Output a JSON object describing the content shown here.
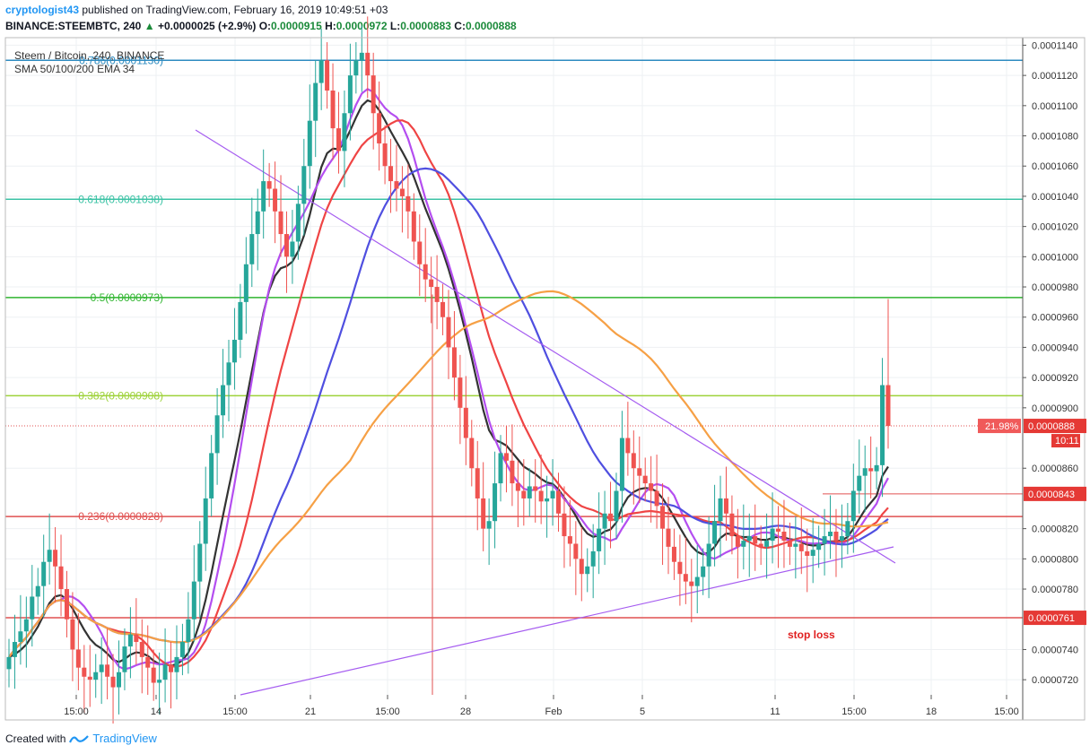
{
  "header": {
    "author": "cryptologist43",
    "published": "published on TradingView.com, February 16, 2019 10:49:51 +03",
    "symbol": "BINANCE:STEEMBTC, 240",
    "change": "+0.0000025 (+2.9%)",
    "o_label": "O:",
    "o_value": "0.0000915",
    "h_label": "H:",
    "h_value": "0.0000972",
    "l_label": "L:",
    "l_value": "0.0000883",
    "c_label": "C:",
    "c_value": "0.0000888"
  },
  "legend": {
    "title": "Steem / Bitcoin, 240, BINANCE",
    "indicators": "SMA 50/100/200 EMA 34"
  },
  "footer": {
    "created_with": "Created with",
    "brand": "TradingView"
  },
  "colors": {
    "up": "#26a69a",
    "down": "#ef5350",
    "ema34": "#333333",
    "sma50": "#b44ef0",
    "sma100": "#ef4444",
    "sma200": "#4f4fe0",
    "orange": "#f6a045",
    "trend": "#a55cf0"
  },
  "chart_data": {
    "type": "candlestick",
    "y_range": [
      7.1e-05,
      0.0001145
    ],
    "y_ticks": [
      "0.0001140",
      "0.0001120",
      "0.0001100",
      "0.0001080",
      "0.0001060",
      "0.0001040",
      "0.0001020",
      "0.0001000",
      "0.0000980",
      "0.0000960",
      "0.0000940",
      "0.0000920",
      "0.0000900",
      "0.0000860",
      "0.0000820",
      "0.0000800",
      "0.0000780",
      "0.0000740",
      "0.0000720"
    ],
    "y_tick_values": [
      0.000114,
      0.000112,
      0.00011,
      0.000108,
      0.000106,
      0.000104,
      0.000102,
      0.0001,
      9.8e-05,
      9.6e-05,
      9.4e-05,
      9.2e-05,
      9e-05,
      8.6e-05,
      8.2e-05,
      8e-05,
      7.8e-05,
      7.4e-05,
      7.2e-05
    ],
    "x_ticks": [
      "15:00",
      "14",
      "15:00",
      "21",
      "15:00",
      "28",
      "Feb",
      "5",
      "11",
      "15:00",
      "18",
      "15:00"
    ],
    "fib_levels": [
      {
        "label": "0.786(0.0001130)",
        "value": 0.000113,
        "color": "#2e8bc0"
      },
      {
        "label": "0.618(0.0001038)",
        "value": 0.0001038,
        "color": "#3cc3a5"
      },
      {
        "label": "0.5(0.0000973)",
        "value": 9.73e-05,
        "color": "#2fb52f"
      },
      {
        "label": "0.382(0.0000908)",
        "value": 9.08e-05,
        "color": "#9ed23a"
      },
      {
        "label": "0.236(0.0000828)",
        "value": 8.28e-05,
        "color": "#e05050"
      }
    ],
    "stop_loss": {
      "label": "stop loss",
      "value": 7.61e-05,
      "tag": "0.0000761"
    },
    "target": {
      "value": 8.43e-05,
      "tag": "0.0000843"
    },
    "last_price": {
      "value": 8.88e-05,
      "tag": "0.0000888",
      "pct": "21.98%",
      "countdown": "10:11"
    },
    "candles_close": [
      7.35e-05,
      7.45e-05,
      7.52e-05,
      7.6e-05,
      7.75e-05,
      7.82e-05,
      7.98e-05,
      8.06e-05,
      7.95e-05,
      7.8e-05,
      7.6e-05,
      7.4e-05,
      7.28e-05,
      7.22e-05,
      7.2e-05,
      7.25e-05,
      7.3e-05,
      7.22e-05,
      7.15e-05,
      7.25e-05,
      7.42e-05,
      7.5e-05,
      7.45e-05,
      7.35e-05,
      7.28e-05,
      7.18e-05,
      7.2e-05,
      7.3e-05,
      7.25e-05,
      7.35e-05,
      7.45e-05,
      7.6e-05,
      7.85e-05,
      8.1e-05,
      8.4e-05,
      8.7e-05,
      8.95e-05,
      9.15e-05,
      9.3e-05,
      9.45e-05,
      9.7e-05,
      9.95e-05,
      0.0001015,
      0.000103,
      0.000105,
      0.0001045,
      0.000103,
      0.0001015,
      0.0001,
      0.000101,
      0.0001035,
      0.000106,
      0.000109,
      0.0001115,
      0.000113,
      0.000111,
      0.0001085,
      0.000107,
      0.0001095,
      0.000112,
      0.000113,
      0.0001135,
      0.000112,
      0.0001095,
      0.0001075,
      0.000106,
      0.000105,
      0.0001045,
      0.000104,
      0.000103,
      0.000101,
      9.95e-05,
      9.85e-05,
      9.8e-05,
      9.7e-05,
      9.6e-05,
      9.4e-05,
      9.2e-05,
      9e-05,
      8.8e-05,
      8.6e-05,
      8.4e-05,
      8.2e-05,
      8.25e-05,
      8.5e-05,
      8.7e-05,
      8.65e-05,
      8.5e-05,
      8.45e-05,
      8.4e-05,
      8.48e-05,
      8.45e-05,
      8.38e-05,
      8.4e-05,
      8.45e-05,
      8.3e-05,
      8.15e-05,
      8.1e-05,
      8e-05,
      7.9e-05,
      7.95e-05,
      8.05e-05,
      8.2e-05,
      8.3e-05,
      8.25e-05,
      8.45e-05,
      8.8e-05,
      8.7e-05,
      8.6e-05,
      8.55e-05,
      8.5e-05,
      8.45e-05,
      8.35e-05,
      8.2e-05,
      8.08e-05,
      7.98e-05,
      7.9e-05,
      7.85e-05,
      7.82e-05,
      7.88e-05,
      7.95e-05,
      8.1e-05,
      8.25e-05,
      8.4e-05,
      8.3e-05,
      8.15e-05,
      8.08e-05,
      8.12e-05,
      8.15e-05,
      8.1e-05,
      8.08e-05,
      8.12e-05,
      8.2e-05,
      8.18e-05,
      8.12e-05,
      8.08e-05,
      8.1e-05,
      8.05e-05,
      8.02e-05,
      8.06e-05,
      8.1e-05,
      8.15e-05,
      8.18e-05,
      8.12e-05,
      8.15e-05,
      8.25e-05,
      8.45e-05,
      8.55e-05,
      8.6e-05,
      8.58e-05,
      8.62e-05,
      9.15e-05,
      8.88e-05
    ]
  }
}
